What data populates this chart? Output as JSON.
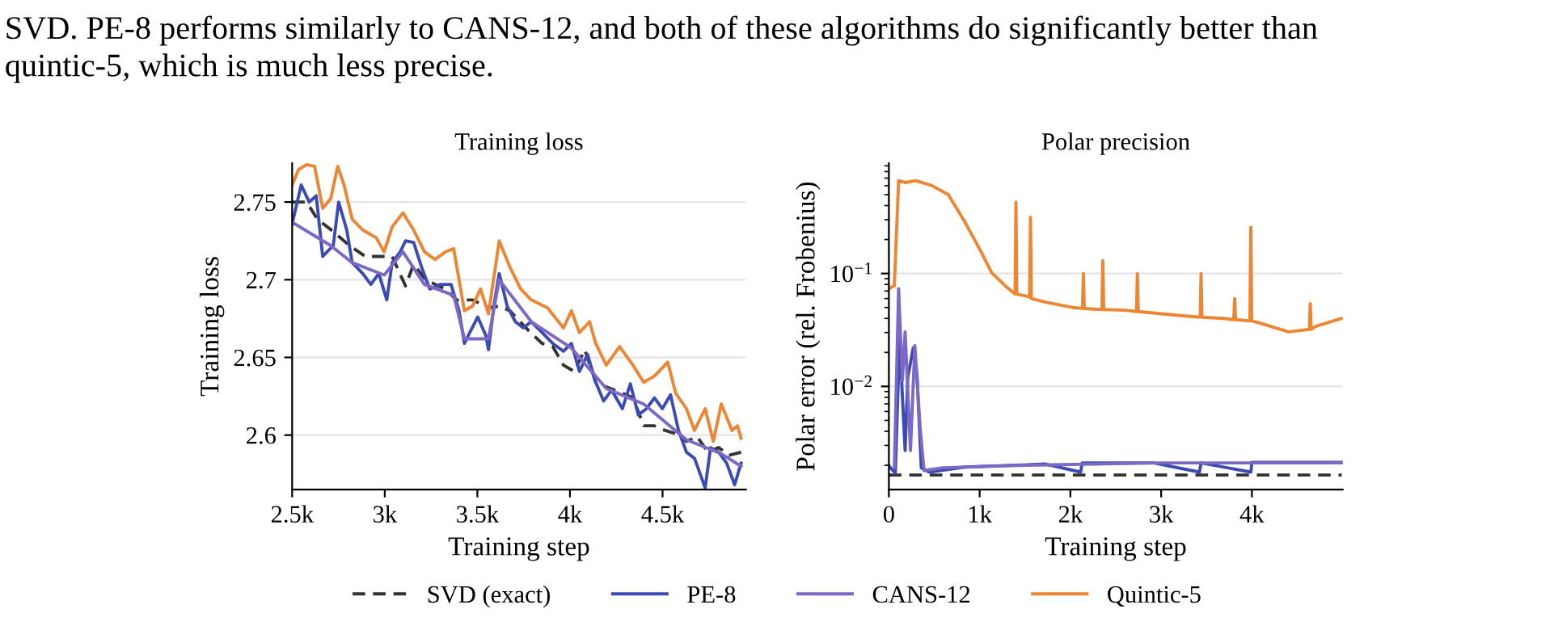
{
  "chart_data": [
    {
      "type": "line",
      "title": "Training loss",
      "xlabel": "Training step",
      "ylabel": "Training loss",
      "annotations": [
        "SVD. PE-8 performs similarly to CANS-12, and both of these algorithms do significantly better than",
        "quintic-5, which is much less precise."
      ],
      "xlim": [
        2500,
        4950
      ],
      "ylim": [
        2.565,
        2.775
      ],
      "xticks": [
        {
          "value": 2500,
          "label": "2.5k"
        },
        {
          "value": 3000,
          "label": "3k"
        },
        {
          "value": 3500,
          "label": "3.5k"
        },
        {
          "value": 4000,
          "label": "4k"
        },
        {
          "value": 4500,
          "label": "4.5k"
        }
      ],
      "yticks": [
        2.6,
        2.65,
        2.7,
        2.75
      ],
      "grid": "y",
      "legend": "bottom",
      "series": [
        {
          "name": "SVD (exact)",
          "color": "#333333",
          "line_style": "dashed",
          "x": [
            2500,
            2578,
            2636,
            2722,
            2809,
            2896,
            2982,
            3040,
            3112,
            3156,
            3214,
            3271,
            3329,
            3387,
            3474,
            3560,
            3618,
            3676,
            3762,
            3849,
            3907,
            3965,
            4023,
            4080,
            4139,
            4196,
            4283,
            4340,
            4398,
            4456,
            4514,
            4571,
            4629,
            4687,
            4745,
            4803,
            4860,
            4924
          ],
          "values": [
            2.75,
            2.75,
            2.739,
            2.731,
            2.722,
            2.715,
            2.715,
            2.715,
            2.696,
            2.71,
            2.701,
            2.697,
            2.694,
            2.687,
            2.687,
            2.682,
            2.683,
            2.68,
            2.669,
            2.659,
            2.657,
            2.645,
            2.641,
            2.655,
            2.634,
            2.631,
            2.627,
            2.624,
            2.606,
            2.606,
            2.603,
            2.601,
            2.596,
            2.599,
            2.589,
            2.592,
            2.587,
            2.589
          ]
        },
        {
          "name": "PE-8",
          "color": "#3a4cb4",
          "line_style": "solid",
          "x": [
            2500,
            2549,
            2592,
            2630,
            2665,
            2722,
            2751,
            2795,
            2824,
            2881,
            2925,
            2968,
            3011,
            3040,
            3084,
            3112,
            3156,
            3199,
            3243,
            3300,
            3358,
            3401,
            3430,
            3459,
            3502,
            3546,
            3560,
            3589,
            3618,
            3661,
            3705,
            3748,
            3791,
            3849,
            3907,
            3965,
            4008,
            4051,
            4095,
            4139,
            4182,
            4225,
            4283,
            4326,
            4369,
            4413,
            4456,
            4499,
            4543,
            4586,
            4629,
            4673,
            4730,
            4759,
            4803,
            4846,
            4889,
            4924
          ],
          "values": [
            2.736,
            2.761,
            2.75,
            2.754,
            2.715,
            2.722,
            2.75,
            2.732,
            2.711,
            2.704,
            2.697,
            2.704,
            2.687,
            2.711,
            2.718,
            2.725,
            2.724,
            2.708,
            2.694,
            2.697,
            2.697,
            2.68,
            2.659,
            2.666,
            2.676,
            2.664,
            2.655,
            2.683,
            2.704,
            2.683,
            2.673,
            2.669,
            2.673,
            2.666,
            2.659,
            2.654,
            2.659,
            2.641,
            2.652,
            2.634,
            2.622,
            2.629,
            2.617,
            2.633,
            2.613,
            2.617,
            2.624,
            2.617,
            2.626,
            2.603,
            2.589,
            2.585,
            2.566,
            2.592,
            2.589,
            2.582,
            2.568,
            2.582
          ]
        },
        {
          "name": "CANS-12",
          "color": "#7d68c6",
          "line_style": "solid",
          "x": [
            2500,
            2708,
            2824,
            2997,
            3098,
            3214,
            3372,
            3430,
            3560,
            3618,
            3791,
            4008,
            4196,
            4398,
            4629,
            4817,
            4924
          ],
          "values": [
            2.737,
            2.722,
            2.711,
            2.703,
            2.718,
            2.697,
            2.69,
            2.662,
            2.662,
            2.7,
            2.673,
            2.656,
            2.63,
            2.62,
            2.597,
            2.588,
            2.58
          ]
        },
        {
          "name": "Quintic-5",
          "color": "#ec8633",
          "line_style": "solid",
          "x": [
            2500,
            2535,
            2578,
            2621,
            2665,
            2708,
            2746,
            2780,
            2824,
            2881,
            2954,
            2997,
            3040,
            3098,
            3156,
            3214,
            3271,
            3329,
            3372,
            3430,
            3474,
            3517,
            3560,
            3618,
            3676,
            3734,
            3791,
            3878,
            3965,
            4008,
            4051,
            4106,
            4139,
            4196,
            4268,
            4340,
            4398,
            4456,
            4528,
            4571,
            4629,
            4672,
            4730,
            4774,
            4817,
            4875,
            4904,
            4924
          ],
          "values": [
            2.761,
            2.771,
            2.774,
            2.773,
            2.746,
            2.752,
            2.773,
            2.761,
            2.739,
            2.732,
            2.727,
            2.718,
            2.734,
            2.743,
            2.732,
            2.718,
            2.713,
            2.718,
            2.72,
            2.68,
            2.683,
            2.694,
            2.678,
            2.725,
            2.708,
            2.694,
            2.687,
            2.682,
            2.669,
            2.68,
            2.666,
            2.673,
            2.659,
            2.645,
            2.657,
            2.645,
            2.634,
            2.638,
            2.647,
            2.627,
            2.617,
            2.603,
            2.617,
            2.596,
            2.62,
            2.603,
            2.606,
            2.598
          ]
        }
      ]
    },
    {
      "type": "line",
      "title": "Polar precision",
      "xlabel": "Training step",
      "ylabel": "Polar error (rel. Frobenius)",
      "log": "y",
      "xlim": [
        0,
        5000
      ],
      "ylim": [
        0.00122,
        0.95
      ],
      "xticks": [
        0,
        {
          "value": 1000,
          "label": "1k"
        },
        {
          "value": 2000,
          "label": "2k"
        },
        {
          "value": 3000,
          "label": "3k"
        },
        {
          "value": 4000,
          "label": "4k"
        }
      ],
      "yticks": [
        {
          "value": 0.1,
          "label": "10$^{−1}$"
        },
        {
          "value": 0.01,
          "label": "10$^{−2}$"
        }
      ],
      "grid": "y",
      "series": [
        {
          "name": "SVD (exact)",
          "color": "#333333",
          "line_style": "dashed",
          "x": [
            0,
            4990
          ],
          "values": [
            0.00164,
            0.00164
          ]
        },
        {
          "name": "PE-8",
          "color": "#3a4cb4",
          "line_style": "solid",
          "x": [
            0,
            71,
            119,
            149,
            179,
            208,
            268,
            310,
            357,
            446,
            833,
            1726,
            2113,
            2130,
            2917,
            3422,
            3440,
            3988,
            4000,
            4107,
            4990
          ],
          "values": [
            0.00198,
            0.0017,
            0.0272,
            0.0081,
            0.0027,
            0.012,
            0.0219,
            0.0126,
            0.0019,
            0.00174,
            0.00193,
            0.00205,
            0.00174,
            0.0021,
            0.0021,
            0.00174,
            0.0021,
            0.00174,
            0.00212,
            0.00212,
            0.00212
          ]
        },
        {
          "name": "CANS-12",
          "color": "#7d68c6",
          "line_style": "solid",
          "x": [
            60,
            107,
            149,
            179,
            238,
            286,
            345,
            387,
            600,
            1500,
            3000,
            4990
          ],
          "values": [
            0.0019,
            0.0735,
            0.0113,
            0.0304,
            0.0027,
            0.023,
            0.0042,
            0.0018,
            0.0019,
            0.002,
            0.0021,
            0.0021
          ]
        },
        {
          "name": "Quintic-5",
          "color": "#ec8633",
          "line_style": "solid",
          "x": [
            0,
            60,
            107,
            179,
            298,
            476,
            655,
            833,
            1012,
            1131,
            1280,
            1390,
            1400,
            1410,
            1550,
            1560,
            1570,
            1726,
            2024,
            2133,
            2143,
            2153,
            2347,
            2357,
            2367,
            2619,
            2728,
            2738,
            2748,
            3214,
            3430,
            3440,
            3450,
            3690,
            3800,
            3810,
            3820,
            3978,
            3988,
            3998,
            4107,
            4405,
            4633,
            4643,
            4653,
            4702,
            4990
          ],
          "values": [
            0.0735,
            0.078,
            0.665,
            0.64,
            0.665,
            0.6,
            0.5,
            0.29,
            0.158,
            0.102,
            0.078,
            0.0658,
            0.43,
            0.0658,
            0.062,
            0.315,
            0.06,
            0.0557,
            0.05,
            0.049,
            0.1,
            0.049,
            0.048,
            0.13,
            0.048,
            0.0473,
            0.046,
            0.1,
            0.046,
            0.0424,
            0.041,
            0.1,
            0.041,
            0.04,
            0.039,
            0.06,
            0.039,
            0.038,
            0.257,
            0.038,
            0.036,
            0.0304,
            0.032,
            0.054,
            0.032,
            0.034,
            0.04
          ]
        }
      ]
    }
  ]
}
